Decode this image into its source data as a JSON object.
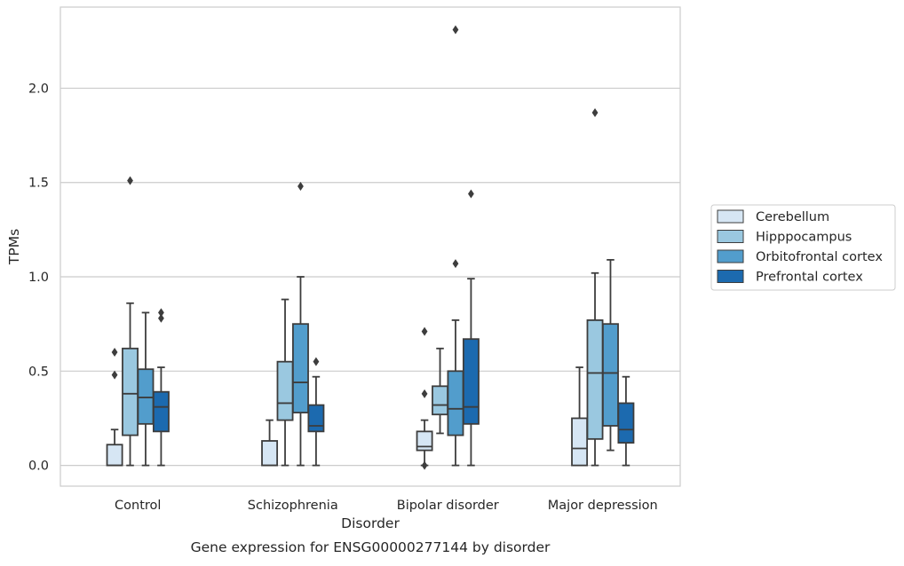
{
  "chart_data": {
    "type": "box",
    "caption": "Gene expression for ENSG00000277144 by disorder",
    "xlabel": "Disorder",
    "ylabel": "TPMs",
    "ylim": [
      -0.11,
      2.43
    ],
    "yticks": [
      0.0,
      0.5,
      1.0,
      1.5,
      2.0
    ],
    "ytick_labels": [
      "0.0",
      "0.5",
      "1.0",
      "1.5",
      "2.0"
    ],
    "grid": "horizontal",
    "legend_position": "right-center",
    "categories": [
      "Control",
      "Schizophrenia",
      "Bipolar disorder",
      "Major depression"
    ],
    "series": [
      {
        "name": "Cerebellum",
        "color": "#d6e6f4",
        "boxes": [
          {
            "whisker_low": 0.0,
            "q1": 0.0,
            "median": 0.0,
            "q3": 0.11,
            "whisker_high": 0.19,
            "outliers": [
              0.48,
              0.6
            ]
          },
          {
            "whisker_low": 0.0,
            "q1": 0.0,
            "median": 0.0,
            "q3": 0.13,
            "whisker_high": 0.24,
            "outliers": []
          },
          {
            "whisker_low": 0.0,
            "q1": 0.08,
            "median": 0.1,
            "q3": 0.18,
            "whisker_high": 0.24,
            "outliers": [
              0.0,
              0.38,
              0.71
            ]
          },
          {
            "whisker_low": 0.0,
            "q1": 0.0,
            "median": 0.09,
            "q3": 0.25,
            "whisker_high": 0.52,
            "outliers": []
          }
        ]
      },
      {
        "name": "Hipppocampus",
        "color": "#9ac8e0",
        "boxes": [
          {
            "whisker_low": 0.0,
            "q1": 0.16,
            "median": 0.38,
            "q3": 0.62,
            "whisker_high": 0.86,
            "outliers": [
              1.51
            ]
          },
          {
            "whisker_low": 0.0,
            "q1": 0.24,
            "median": 0.33,
            "q3": 0.55,
            "whisker_high": 0.88,
            "outliers": []
          },
          {
            "whisker_low": 0.17,
            "q1": 0.27,
            "median": 0.32,
            "q3": 0.42,
            "whisker_high": 0.62,
            "outliers": []
          },
          {
            "whisker_low": 0.0,
            "q1": 0.14,
            "median": 0.49,
            "q3": 0.77,
            "whisker_high": 1.02,
            "outliers": [
              1.87
            ]
          }
        ]
      },
      {
        "name": "Orbitofrontal cortex",
        "color": "#529dcc",
        "boxes": [
          {
            "whisker_low": 0.0,
            "q1": 0.22,
            "median": 0.36,
            "q3": 0.51,
            "whisker_high": 0.81,
            "outliers": []
          },
          {
            "whisker_low": 0.0,
            "q1": 0.28,
            "median": 0.44,
            "q3": 0.75,
            "whisker_high": 1.0,
            "outliers": [
              1.48
            ]
          },
          {
            "whisker_low": 0.0,
            "q1": 0.16,
            "median": 0.3,
            "q3": 0.5,
            "whisker_high": 0.77,
            "outliers": [
              1.07,
              2.31
            ]
          },
          {
            "whisker_low": 0.08,
            "q1": 0.21,
            "median": 0.49,
            "q3": 0.75,
            "whisker_high": 1.09,
            "outliers": []
          }
        ]
      },
      {
        "name": "Prefrontal cortex",
        "color": "#1c6aaf",
        "boxes": [
          {
            "whisker_low": 0.0,
            "q1": 0.18,
            "median": 0.31,
            "q3": 0.39,
            "whisker_high": 0.52,
            "outliers": [
              0.78,
              0.81
            ]
          },
          {
            "whisker_low": 0.0,
            "q1": 0.18,
            "median": 0.21,
            "q3": 0.32,
            "whisker_high": 0.47,
            "outliers": [
              0.55
            ]
          },
          {
            "whisker_low": 0.0,
            "q1": 0.22,
            "median": 0.31,
            "q3": 0.67,
            "whisker_high": 0.99,
            "outliers": [
              1.44
            ]
          },
          {
            "whisker_low": 0.0,
            "q1": 0.12,
            "median": 0.19,
            "q3": 0.33,
            "whisker_high": 0.47,
            "outliers": []
          }
        ]
      }
    ]
  }
}
